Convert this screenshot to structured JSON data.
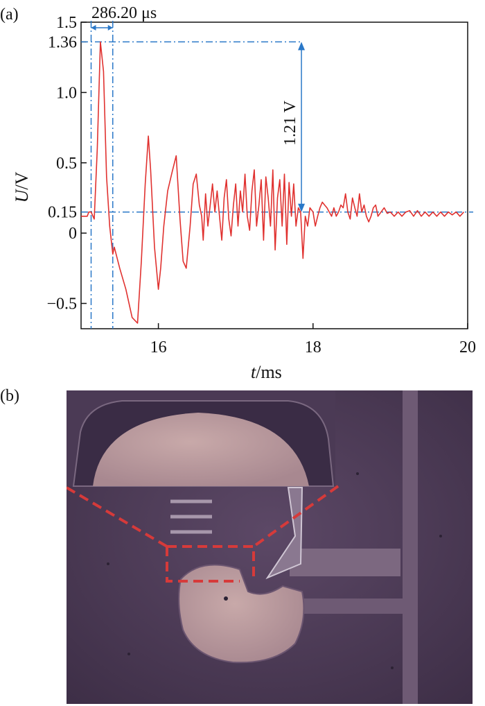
{
  "figure": {
    "panel_a_label": "(a)",
    "panel_b_label": "(b)"
  },
  "chart_data": {
    "type": "line",
    "xlabel_italic": "t",
    "xlabel_unit": "/ms",
    "ylabel_italic": "U",
    "ylabel_unit": "/V",
    "xlim": [
      15.0,
      20.0
    ],
    "ylim": [
      -0.68,
      1.5
    ],
    "x_ticks": [
      16,
      18,
      20
    ],
    "y_ticks": [
      -0.5,
      0,
      0.15,
      0.5,
      1.0,
      1.36,
      1.5
    ],
    "y_tick_labels": [
      "−0.5",
      "0",
      "0.15",
      "0.5",
      "1.0",
      "1.36",
      "1.5"
    ],
    "x_tick_labels": [
      "16",
      "18",
      "20"
    ],
    "grid": false,
    "line_color": "#e0312f",
    "annotation_color": "#2a78c8",
    "annotations": {
      "pulse_width": "286.20 μs",
      "amplitude": "1.21 V",
      "baseline_level": 0.15,
      "peak_level": 1.36,
      "pulse_start": 15.13,
      "pulse_end": 15.41,
      "amplitude_x": 17.85
    },
    "series": [
      {
        "x": [
          15.0,
          15.08,
          15.1,
          15.13,
          15.17,
          15.21,
          15.25,
          15.29,
          15.33,
          15.37,
          15.41,
          15.43,
          15.5,
          15.58,
          15.66,
          15.73,
          15.78,
          15.83,
          15.87,
          15.9,
          15.95,
          16.0,
          16.03,
          16.07,
          16.12,
          16.18,
          16.23,
          16.28,
          16.32,
          16.36,
          16.41,
          16.45,
          16.49,
          16.53,
          16.56,
          16.58,
          16.61,
          16.64,
          16.67,
          16.7,
          16.73,
          16.76,
          16.79,
          16.82,
          16.85,
          16.88,
          16.91,
          16.94,
          16.97,
          17.0,
          17.03,
          17.06,
          17.09,
          17.12,
          17.15,
          17.18,
          17.21,
          17.24,
          17.27,
          17.3,
          17.33,
          17.36,
          17.39,
          17.42,
          17.45,
          17.48,
          17.51,
          17.54,
          17.57,
          17.6,
          17.63,
          17.66,
          17.69,
          17.72,
          17.75,
          17.78,
          17.81,
          17.84,
          17.87,
          17.9,
          17.93,
          17.96,
          18.0,
          18.03,
          18.06,
          18.09,
          18.12,
          18.15,
          18.18,
          18.21,
          18.24,
          18.27,
          18.3,
          18.33,
          18.36,
          18.39,
          18.42,
          18.45,
          18.48,
          18.51,
          18.54,
          18.57,
          18.6,
          18.63,
          18.66,
          18.69,
          18.72,
          18.75,
          18.78,
          18.81,
          18.84,
          18.88,
          18.92,
          18.96,
          19.0,
          19.05,
          19.1,
          19.15,
          19.2,
          19.25,
          19.3,
          19.35,
          19.4,
          19.45,
          19.5,
          19.55,
          19.6,
          19.65,
          19.7,
          19.75,
          19.8,
          19.85,
          19.9,
          19.95
        ],
        "y": [
          0.12,
          0.12,
          0.15,
          0.15,
          0.1,
          0.6,
          1.36,
          1.15,
          0.4,
          0.05,
          -0.15,
          -0.1,
          -0.25,
          -0.4,
          -0.6,
          -0.64,
          -0.2,
          0.35,
          0.69,
          0.45,
          -0.1,
          -0.4,
          -0.25,
          0.05,
          0.3,
          0.44,
          0.55,
          0.1,
          -0.2,
          -0.25,
          0.05,
          0.35,
          0.42,
          0.2,
          0.12,
          -0.05,
          0.28,
          0.05,
          0.2,
          0.35,
          0.15,
          0.3,
          0.12,
          -0.05,
          0.25,
          0.38,
          0.1,
          -0.02,
          0.2,
          0.35,
          0.05,
          0.3,
          0.15,
          0.42,
          0.12,
          0.02,
          0.3,
          0.45,
          0.05,
          0.2,
          0.38,
          -0.05,
          0.4,
          0.25,
          0.05,
          0.45,
          -0.12,
          0.25,
          0.38,
          0.05,
          0.42,
          -0.08,
          0.36,
          0.12,
          0.35,
          0.05,
          0.18,
          0.15,
          -0.18,
          0.12,
          0.05,
          0.18,
          0.15,
          0.05,
          0.12,
          0.18,
          0.22,
          0.2,
          0.18,
          0.15,
          0.12,
          0.18,
          0.12,
          0.15,
          0.2,
          0.18,
          0.28,
          0.15,
          0.1,
          0.25,
          0.18,
          0.12,
          0.28,
          0.15,
          0.2,
          0.12,
          0.08,
          0.12,
          0.18,
          0.2,
          0.12,
          0.15,
          0.18,
          0.14,
          0.15,
          0.12,
          0.15,
          0.12,
          0.15,
          0.16,
          0.12,
          0.16,
          0.12,
          0.15,
          0.12,
          0.15,
          0.12,
          0.15,
          0.12,
          0.15,
          0.13,
          0.15,
          0.12,
          0.15
        ]
      }
    ]
  }
}
